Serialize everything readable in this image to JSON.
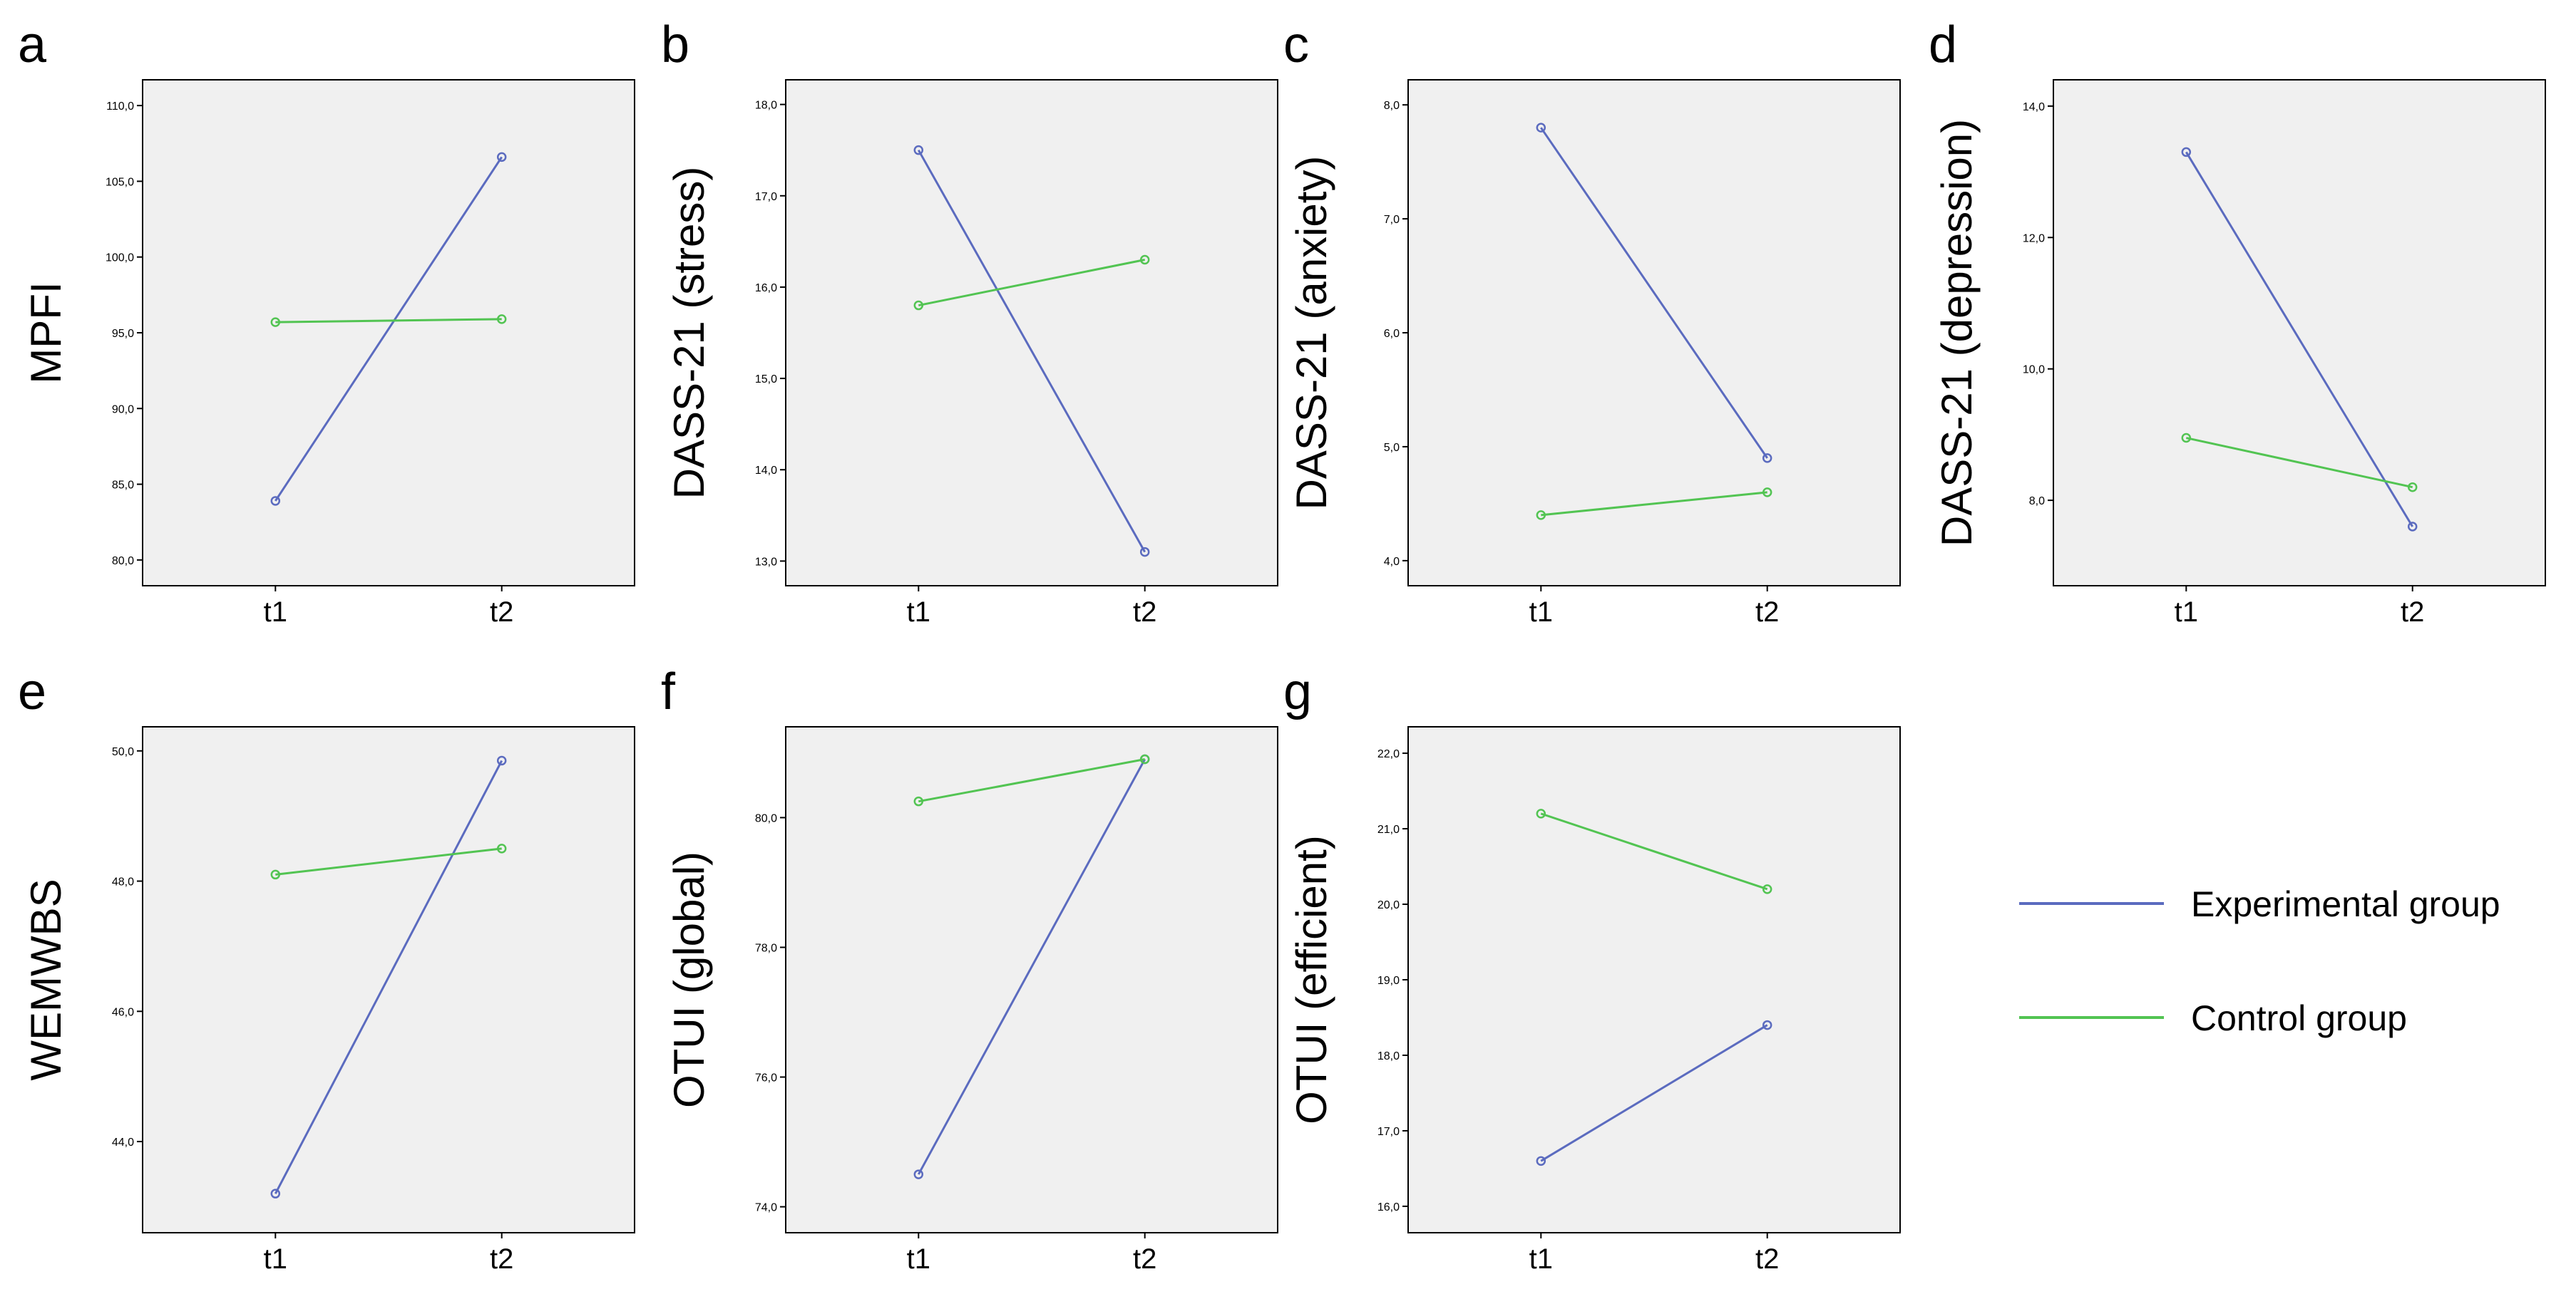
{
  "colors": {
    "experimental": "#5b6bbf",
    "control": "#52c452",
    "plot_background": "#f0f0f0"
  },
  "legend": {
    "experimental_label": "Experimental group",
    "control_label": "Control group"
  },
  "chart_data": [
    {
      "panel": "a",
      "type": "line",
      "categories": [
        "t1",
        "t2"
      ],
      "ylabel": "MPFI",
      "ylim": [
        78.3,
        111.7
      ],
      "yticks": [
        80,
        85,
        90,
        95,
        100,
        105,
        110
      ],
      "ytick_labels": [
        "80,0",
        "85,0",
        "90,0",
        "95,0",
        "100,0",
        "105,0",
        "110,0"
      ],
      "series": [
        {
          "name": "Experimental group",
          "values": [
            83.9,
            106.6
          ]
        },
        {
          "name": "Control group",
          "values": [
            95.7,
            95.9
          ]
        }
      ]
    },
    {
      "panel": "b",
      "type": "line",
      "categories": [
        "t1",
        "t2"
      ],
      "ylabel": "DASS-21 (stress)",
      "ylim": [
        12.73,
        18.27
      ],
      "yticks": [
        13,
        14,
        15,
        16,
        17,
        18
      ],
      "ytick_labels": [
        "13,0",
        "14,0",
        "15,0",
        "16,0",
        "17,0",
        "18,0"
      ],
      "series": [
        {
          "name": "Experimental group",
          "values": [
            17.5,
            13.1
          ]
        },
        {
          "name": "Control group",
          "values": [
            15.8,
            16.3
          ]
        }
      ]
    },
    {
      "panel": "c",
      "type": "line",
      "categories": [
        "t1",
        "t2"
      ],
      "ylabel": "DASS-21 (anxiety)",
      "ylim": [
        3.78,
        8.22
      ],
      "yticks": [
        4,
        5,
        6,
        7,
        8
      ],
      "ytick_labels": [
        "4,0",
        "5,0",
        "6,0",
        "7,0",
        "8,0"
      ],
      "series": [
        {
          "name": "Experimental group",
          "values": [
            7.8,
            4.9
          ]
        },
        {
          "name": "Control group",
          "values": [
            4.4,
            4.6
          ]
        }
      ]
    },
    {
      "panel": "d",
      "type": "line",
      "categories": [
        "t1",
        "t2"
      ],
      "ylabel": "DASS-21 (depression)",
      "ylim": [
        6.7,
        14.4
      ],
      "yticks": [
        8,
        10,
        12,
        14
      ],
      "ytick_labels": [
        "8,0",
        "10,0",
        "12,0",
        "14,0"
      ],
      "series": [
        {
          "name": "Experimental group",
          "values": [
            13.3,
            7.6
          ]
        },
        {
          "name": "Control group",
          "values": [
            8.95,
            8.2
          ]
        }
      ]
    },
    {
      "panel": "e",
      "type": "line",
      "categories": [
        "t1",
        "t2"
      ],
      "ylabel": "WEMWBS",
      "ylim": [
        42.6,
        50.37
      ],
      "yticks": [
        44,
        46,
        48,
        50
      ],
      "ytick_labels": [
        "44,0",
        "46,0",
        "48,0",
        "50,0"
      ],
      "series": [
        {
          "name": "Experimental group",
          "values": [
            43.2,
            49.85
          ]
        },
        {
          "name": "Control group",
          "values": [
            48.1,
            48.5
          ]
        }
      ]
    },
    {
      "panel": "f",
      "type": "line",
      "categories": [
        "t1",
        "t2"
      ],
      "ylabel": "OTUI (global)",
      "ylim": [
        73.6,
        81.4
      ],
      "yticks": [
        74,
        76,
        78,
        80
      ],
      "ytick_labels": [
        "74,0",
        "76,0",
        "78,0",
        "80,0"
      ],
      "series": [
        {
          "name": "Experimental group",
          "values": [
            74.5,
            80.9
          ]
        },
        {
          "name": "Control group",
          "values": [
            80.25,
            80.9
          ]
        }
      ]
    },
    {
      "panel": "g",
      "type": "line",
      "categories": [
        "t1",
        "t2"
      ],
      "ylabel": "OTUI (efficient)",
      "ylim": [
        15.65,
        22.35
      ],
      "yticks": [
        16,
        17,
        18,
        19,
        20,
        21,
        22
      ],
      "ytick_labels": [
        "16,0",
        "17,0",
        "18,0",
        "19,0",
        "20,0",
        "21,0",
        "22,0"
      ],
      "series": [
        {
          "name": "Experimental group",
          "values": [
            16.6,
            18.4
          ]
        },
        {
          "name": "Control group",
          "values": [
            21.2,
            20.2
          ]
        }
      ]
    }
  ]
}
